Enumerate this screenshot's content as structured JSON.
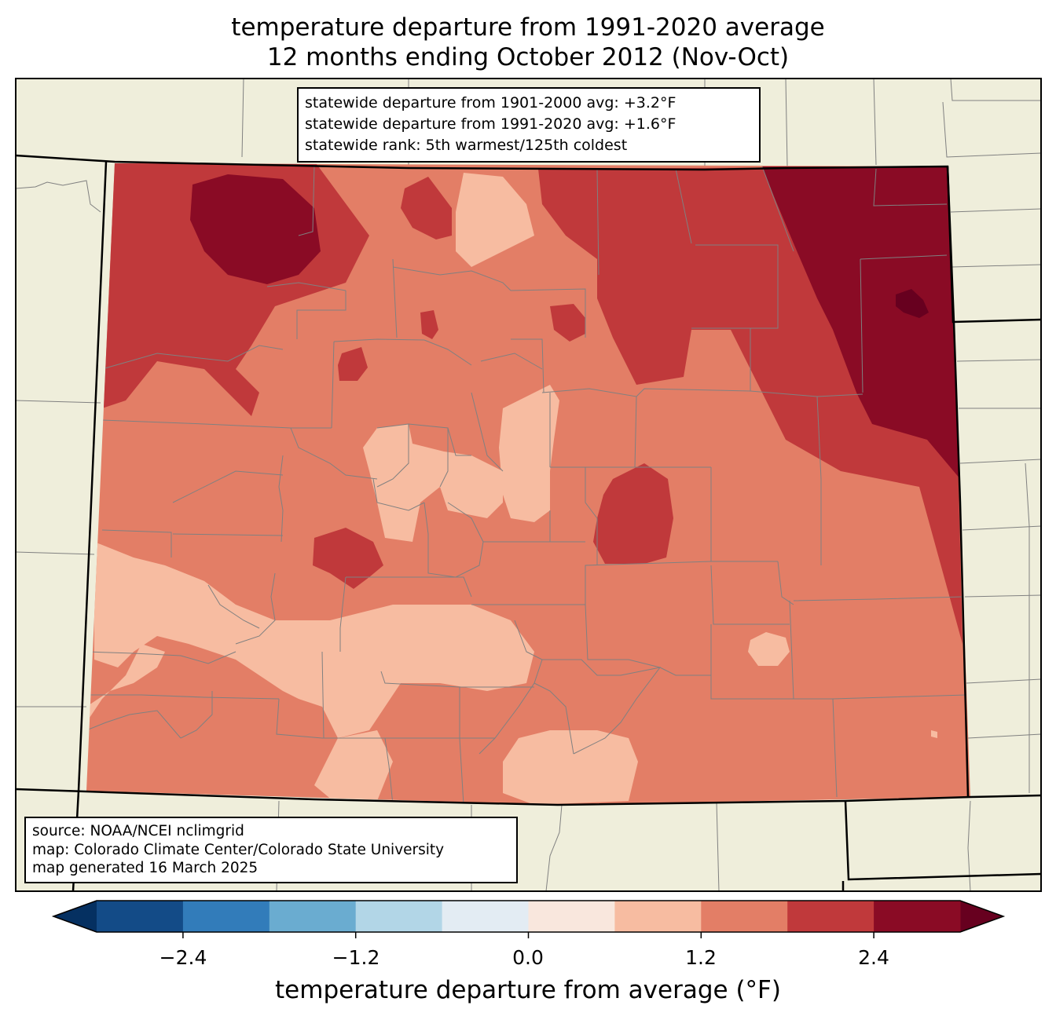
{
  "title": {
    "line1": "temperature departure from 1991-2020 average",
    "line2": "12 months ending October 2012 (Nov-Oct)"
  },
  "stats": {
    "line1": "statewide departure from 1901-2000 avg: +3.2°F",
    "line2": "statewide departure from 1991-2020 avg: +1.6°F",
    "line3": "statewide rank: 5th warmest/125th coldest"
  },
  "credits": {
    "line1": "source: NOAA/NCEI nclimgrid",
    "line2": "map: Colorado Climate Center/Colorado State University",
    "line3": "map generated 16 March 2025"
  },
  "colorbar": {
    "label": "temperature departure from average (°F)",
    "ticks": [
      "−2.4",
      "−1.2",
      "0.0",
      "1.2",
      "2.4"
    ],
    "bins": [
      {
        "from": -3.0,
        "to": -2.4,
        "color": "#134b87"
      },
      {
        "from": -2.4,
        "to": -1.8,
        "color": "#327cba"
      },
      {
        "from": -1.8,
        "to": -1.2,
        "color": "#6aacd0"
      },
      {
        "from": -1.2,
        "to": -0.6,
        "color": "#b2d6e7"
      },
      {
        "from": -0.6,
        "to": 0.0,
        "color": "#e3ecf3"
      },
      {
        "from": 0.0,
        "to": 0.6,
        "color": "#f9e7dd"
      },
      {
        "from": 0.6,
        "to": 1.2,
        "color": "#f7bca1"
      },
      {
        "from": 1.2,
        "to": 1.8,
        "color": "#e37e66"
      },
      {
        "from": 1.8,
        "to": 2.4,
        "color": "#c0393b"
      },
      {
        "from": 2.4,
        "to": 3.0,
        "color": "#8a0b25"
      }
    ],
    "under_color": "#053061",
    "over_color": "#67001f"
  },
  "map_colors": {
    "land_outside": "#efeedb",
    "county_lines": "#808080",
    "state_lines": "#000000"
  }
}
